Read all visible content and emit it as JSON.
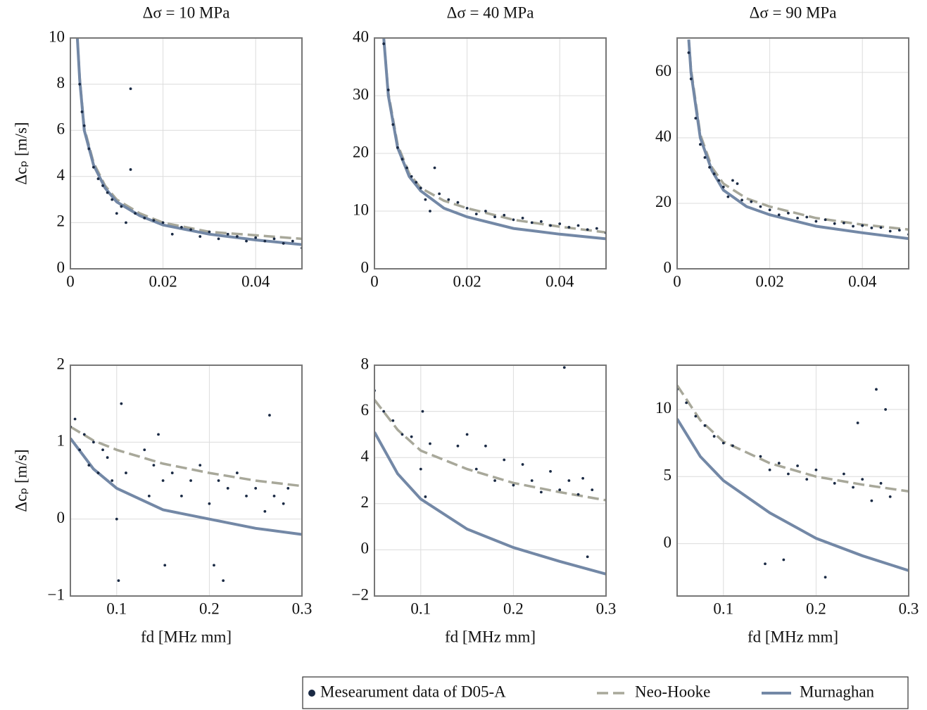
{
  "chart_data": [
    {
      "type": "scatter",
      "title": "Δσ = 10 MPa",
      "ylabel": "Δcₚ [m/s]",
      "xlim": [
        0,
        0.05
      ],
      "xticks": [
        0,
        0.02,
        0.04
      ],
      "ylim": [
        0,
        10
      ],
      "yticks": [
        0,
        2,
        4,
        6,
        8,
        10
      ],
      "grid": true,
      "series": [
        {
          "name": "Mesearument data of D05-A",
          "kind": "scatter",
          "color": "#1a2a44",
          "x": [
            0.002,
            0.0025,
            0.003,
            0.004,
            0.005,
            0.006,
            0.007,
            0.008,
            0.009,
            0.01,
            0.011,
            0.012,
            0.013,
            0.013,
            0.014,
            0.016,
            0.018,
            0.02,
            0.022,
            0.024,
            0.026,
            0.028,
            0.03,
            0.032,
            0.034,
            0.036,
            0.038,
            0.04,
            0.042,
            0.044,
            0.046,
            0.048,
            0.05
          ],
          "values": [
            8,
            6.8,
            6.2,
            5.2,
            4.4,
            3.9,
            3.6,
            3.3,
            3.0,
            2.4,
            2.7,
            2.0,
            7.8,
            4.3,
            2.4,
            2.2,
            2.1,
            2.0,
            1.5,
            1.8,
            1.7,
            1.4,
            1.6,
            1.3,
            1.5,
            1.4,
            1.2,
            1.35,
            1.2,
            1.3,
            1.1,
            1.2,
            0.9
          ]
        },
        {
          "name": "Neo-Hooke",
          "kind": "line",
          "dash": true,
          "color": "#a8a89a",
          "x": [
            0.0015,
            0.002,
            0.003,
            0.005,
            0.0075,
            0.01,
            0.015,
            0.02,
            0.03,
            0.04,
            0.05
          ],
          "values": [
            10,
            8.3,
            6.1,
            4.6,
            3.6,
            3.0,
            2.4,
            2.0,
            1.6,
            1.45,
            1.3
          ]
        },
        {
          "name": "Murnaghan",
          "kind": "line",
          "dash": false,
          "color": "#7388a6",
          "x": [
            0.0015,
            0.002,
            0.003,
            0.005,
            0.0075,
            0.01,
            0.015,
            0.02,
            0.03,
            0.04,
            0.05
          ],
          "values": [
            10,
            8.2,
            6,
            4.5,
            3.5,
            2.9,
            2.3,
            1.9,
            1.5,
            1.25,
            1.05
          ]
        }
      ]
    },
    {
      "type": "scatter",
      "title": "Δσ = 40 MPa",
      "xlim": [
        0,
        0.05
      ],
      "xticks": [
        0,
        0.02,
        0.04
      ],
      "ylim": [
        0,
        40
      ],
      "yticks": [
        0,
        10,
        20,
        30,
        40
      ],
      "grid": true,
      "series": [
        {
          "kind": "scatter",
          "color": "#1a2a44",
          "x": [
            0.002,
            0.003,
            0.004,
            0.005,
            0.006,
            0.007,
            0.008,
            0.009,
            0.01,
            0.011,
            0.012,
            0.013,
            0.014,
            0.016,
            0.018,
            0.02,
            0.022,
            0.024,
            0.026,
            0.028,
            0.03,
            0.032,
            0.034,
            0.036,
            0.038,
            0.04,
            0.042,
            0.044,
            0.046,
            0.048,
            0.05
          ],
          "values": [
            39,
            31,
            25,
            21,
            19,
            17.5,
            16,
            15,
            14,
            12,
            10,
            17.5,
            13,
            12,
            11.5,
            10.5,
            9.5,
            10,
            9,
            9.3,
            8.5,
            8.8,
            8,
            8.2,
            7.5,
            7.8,
            7.2,
            7.5,
            6.8,
            7,
            6.2
          ]
        },
        {
          "kind": "line",
          "dash": true,
          "color": "#a8a89a",
          "x": [
            0.002,
            0.003,
            0.005,
            0.0075,
            0.01,
            0.015,
            0.02,
            0.03,
            0.04,
            0.05
          ],
          "values": [
            40,
            30.5,
            21.5,
            16.5,
            14,
            11.8,
            10.5,
            8.5,
            7.3,
            6.3
          ]
        },
        {
          "kind": "line",
          "dash": false,
          "color": "#7388a6",
          "x": [
            0.002,
            0.003,
            0.005,
            0.0075,
            0.01,
            0.015,
            0.02,
            0.03,
            0.04,
            0.05
          ],
          "values": [
            40,
            30,
            21,
            16,
            13.5,
            10.5,
            9,
            7,
            6,
            5.2
          ]
        }
      ]
    },
    {
      "type": "scatter",
      "title": "Δσ = 90 MPa",
      "xlim": [
        0,
        0.05
      ],
      "xticks": [
        0,
        0.02,
        0.04
      ],
      "ylim": [
        0,
        70.5
      ],
      "yticks": [
        0,
        20,
        40,
        60
      ],
      "grid": true,
      "series": [
        {
          "kind": "scatter",
          "color": "#1a2a44",
          "x": [
            0.0025,
            0.003,
            0.004,
            0.005,
            0.006,
            0.007,
            0.008,
            0.009,
            0.01,
            0.011,
            0.012,
            0.013,
            0.014,
            0.016,
            0.018,
            0.02,
            0.022,
            0.024,
            0.026,
            0.028,
            0.03,
            0.032,
            0.034,
            0.036,
            0.038,
            0.04,
            0.042,
            0.044,
            0.046,
            0.048,
            0.05
          ],
          "values": [
            66,
            58,
            46,
            38,
            34,
            31,
            29,
            27,
            25,
            22,
            27,
            26,
            21,
            20.5,
            19,
            18,
            16.5,
            17,
            15.5,
            15.8,
            14.5,
            15,
            13.8,
            14,
            13,
            13.2,
            12.5,
            12.6,
            11.5,
            11.8,
            10.5
          ]
        },
        {
          "kind": "line",
          "dash": true,
          "color": "#a8a89a",
          "x": [
            0.0025,
            0.003,
            0.005,
            0.0075,
            0.01,
            0.015,
            0.02,
            0.03,
            0.04,
            0.05
          ],
          "values": [
            70,
            61,
            41,
            31,
            26,
            21.5,
            19,
            15.5,
            13.5,
            12
          ]
        },
        {
          "kind": "line",
          "dash": false,
          "color": "#7388a6",
          "x": [
            0.0025,
            0.003,
            0.005,
            0.0075,
            0.01,
            0.015,
            0.02,
            0.03,
            0.04,
            0.05
          ],
          "values": [
            70,
            60,
            40,
            30,
            24,
            19,
            16.5,
            13,
            11,
            9.2
          ]
        }
      ]
    },
    {
      "type": "scatter",
      "ylabel": "Δcₚ [m/s]",
      "xlabel": "fd [MHz mm]",
      "xlim": [
        0.05,
        0.3
      ],
      "xticks": [
        0.1,
        0.2,
        0.3
      ],
      "ylim": [
        -1,
        2
      ],
      "yticks": [
        {
          "value": -1,
          "label": "−1"
        },
        0,
        1,
        2
      ],
      "grid": true,
      "series": [
        {
          "kind": "scatter",
          "color": "#1a2a44",
          "x": [
            0.05,
            0.055,
            0.06,
            0.065,
            0.07,
            0.075,
            0.08,
            0.085,
            0.09,
            0.095,
            0.1,
            0.102,
            0.105,
            0.11,
            0.13,
            0.135,
            0.14,
            0.145,
            0.15,
            0.152,
            0.16,
            0.17,
            0.18,
            0.19,
            0.2,
            0.205,
            0.21,
            0.215,
            0.22,
            0.23,
            0.24,
            0.25,
            0.26,
            0.265,
            0.27,
            0.28,
            0.285
          ],
          "values": [
            1.2,
            1.3,
            0.9,
            1.1,
            0.7,
            1.0,
            0.6,
            0.9,
            0.8,
            0.5,
            0.0,
            -0.8,
            1.5,
            0.6,
            0.9,
            0.3,
            0.7,
            1.1,
            0.5,
            -0.6,
            0.6,
            0.3,
            0.5,
            0.7,
            0.2,
            -0.6,
            0.5,
            -0.8,
            0.4,
            0.6,
            0.3,
            0.4,
            0.1,
            1.35,
            0.3,
            0.2,
            0.4
          ]
        },
        {
          "kind": "line",
          "dash": true,
          "color": "#a8a89a",
          "x": [
            0.05,
            0.075,
            0.1,
            0.15,
            0.2,
            0.25,
            0.3
          ],
          "values": [
            1.2,
            1.02,
            0.9,
            0.72,
            0.6,
            0.5,
            0.43
          ]
        },
        {
          "kind": "line",
          "dash": false,
          "color": "#7388a6",
          "x": [
            0.05,
            0.075,
            0.1,
            0.15,
            0.2,
            0.25,
            0.3
          ],
          "values": [
            1.05,
            0.65,
            0.4,
            0.12,
            0,
            -0.12,
            -0.2
          ]
        }
      ]
    },
    {
      "type": "scatter",
      "xlabel": "fd [MHz mm]",
      "xlim": [
        0.05,
        0.3
      ],
      "xticks": [
        0.1,
        0.2,
        0.3
      ],
      "ylim": [
        -2,
        8
      ],
      "yticks": [
        {
          "value": -2,
          "label": "−2"
        },
        0,
        2,
        4,
        6,
        8
      ],
      "grid": true,
      "series": [
        {
          "kind": "scatter",
          "color": "#1a2a44",
          "x": [
            0.05,
            0.06,
            0.07,
            0.08,
            0.09,
            0.1,
            0.102,
            0.105,
            0.11,
            0.14,
            0.15,
            0.16,
            0.17,
            0.18,
            0.19,
            0.2,
            0.21,
            0.22,
            0.23,
            0.24,
            0.25,
            0.255,
            0.26,
            0.27,
            0.275,
            0.28,
            0.285
          ],
          "values": [
            6.9,
            6.0,
            5.6,
            5.0,
            4.9,
            3.5,
            6,
            2.3,
            4.6,
            4.5,
            5,
            3.5,
            4.5,
            3.0,
            3.9,
            2.8,
            3.7,
            3.0,
            2.5,
            3.4,
            2.6,
            7.9,
            3.0,
            2.4,
            3.1,
            -0.3,
            2.6
          ]
        },
        {
          "kind": "line",
          "dash": true,
          "color": "#a8a89a",
          "x": [
            0.05,
            0.075,
            0.1,
            0.15,
            0.2,
            0.25,
            0.3
          ],
          "values": [
            6.5,
            5.2,
            4.3,
            3.5,
            2.9,
            2.5,
            2.15
          ]
        },
        {
          "kind": "line",
          "dash": false,
          "color": "#7388a6",
          "x": [
            0.05,
            0.075,
            0.1,
            0.15,
            0.2,
            0.25,
            0.3
          ],
          "values": [
            5.1,
            3.3,
            2.2,
            0.9,
            0.1,
            -0.5,
            -1.05
          ]
        }
      ]
    },
    {
      "type": "scatter",
      "xlabel": "fd [MHz mm]",
      "xlim": [
        0.05,
        0.3
      ],
      "xticks": [
        0.1,
        0.2,
        0.3
      ],
      "ylim": [
        -3.9,
        13.3
      ],
      "yticks": [
        0,
        5,
        10
      ],
      "grid": true,
      "series": [
        {
          "kind": "scatter",
          "color": "#1a2a44",
          "x": [
            0.05,
            0.06,
            0.07,
            0.08,
            0.09,
            0.1,
            0.11,
            0.14,
            0.145,
            0.15,
            0.16,
            0.165,
            0.17,
            0.18,
            0.19,
            0.2,
            0.21,
            0.22,
            0.23,
            0.24,
            0.245,
            0.25,
            0.26,
            0.265,
            0.27,
            0.275,
            0.28
          ],
          "values": [
            11.5,
            10.5,
            9.5,
            8.8,
            8,
            7.5,
            7.3,
            6.5,
            -1.5,
            5.5,
            6,
            -1.2,
            5.2,
            5.8,
            4.8,
            5.5,
            -2.5,
            4.5,
            5.2,
            4.2,
            9,
            4.8,
            3.2,
            11.5,
            4.5,
            10,
            3.5
          ]
        },
        {
          "kind": "line",
          "dash": true,
          "color": "#a8a89a",
          "x": [
            0.05,
            0.075,
            0.1,
            0.15,
            0.2,
            0.25,
            0.3
          ],
          "values": [
            11.8,
            9.2,
            7.6,
            6,
            5,
            4.4,
            3.9
          ]
        },
        {
          "kind": "line",
          "dash": false,
          "color": "#7388a6",
          "x": [
            0.05,
            0.075,
            0.1,
            0.15,
            0.2,
            0.25,
            0.3
          ],
          "values": [
            9.3,
            6.5,
            4.7,
            2.3,
            0.4,
            -0.9,
            -2
          ]
        }
      ]
    }
  ]
}
